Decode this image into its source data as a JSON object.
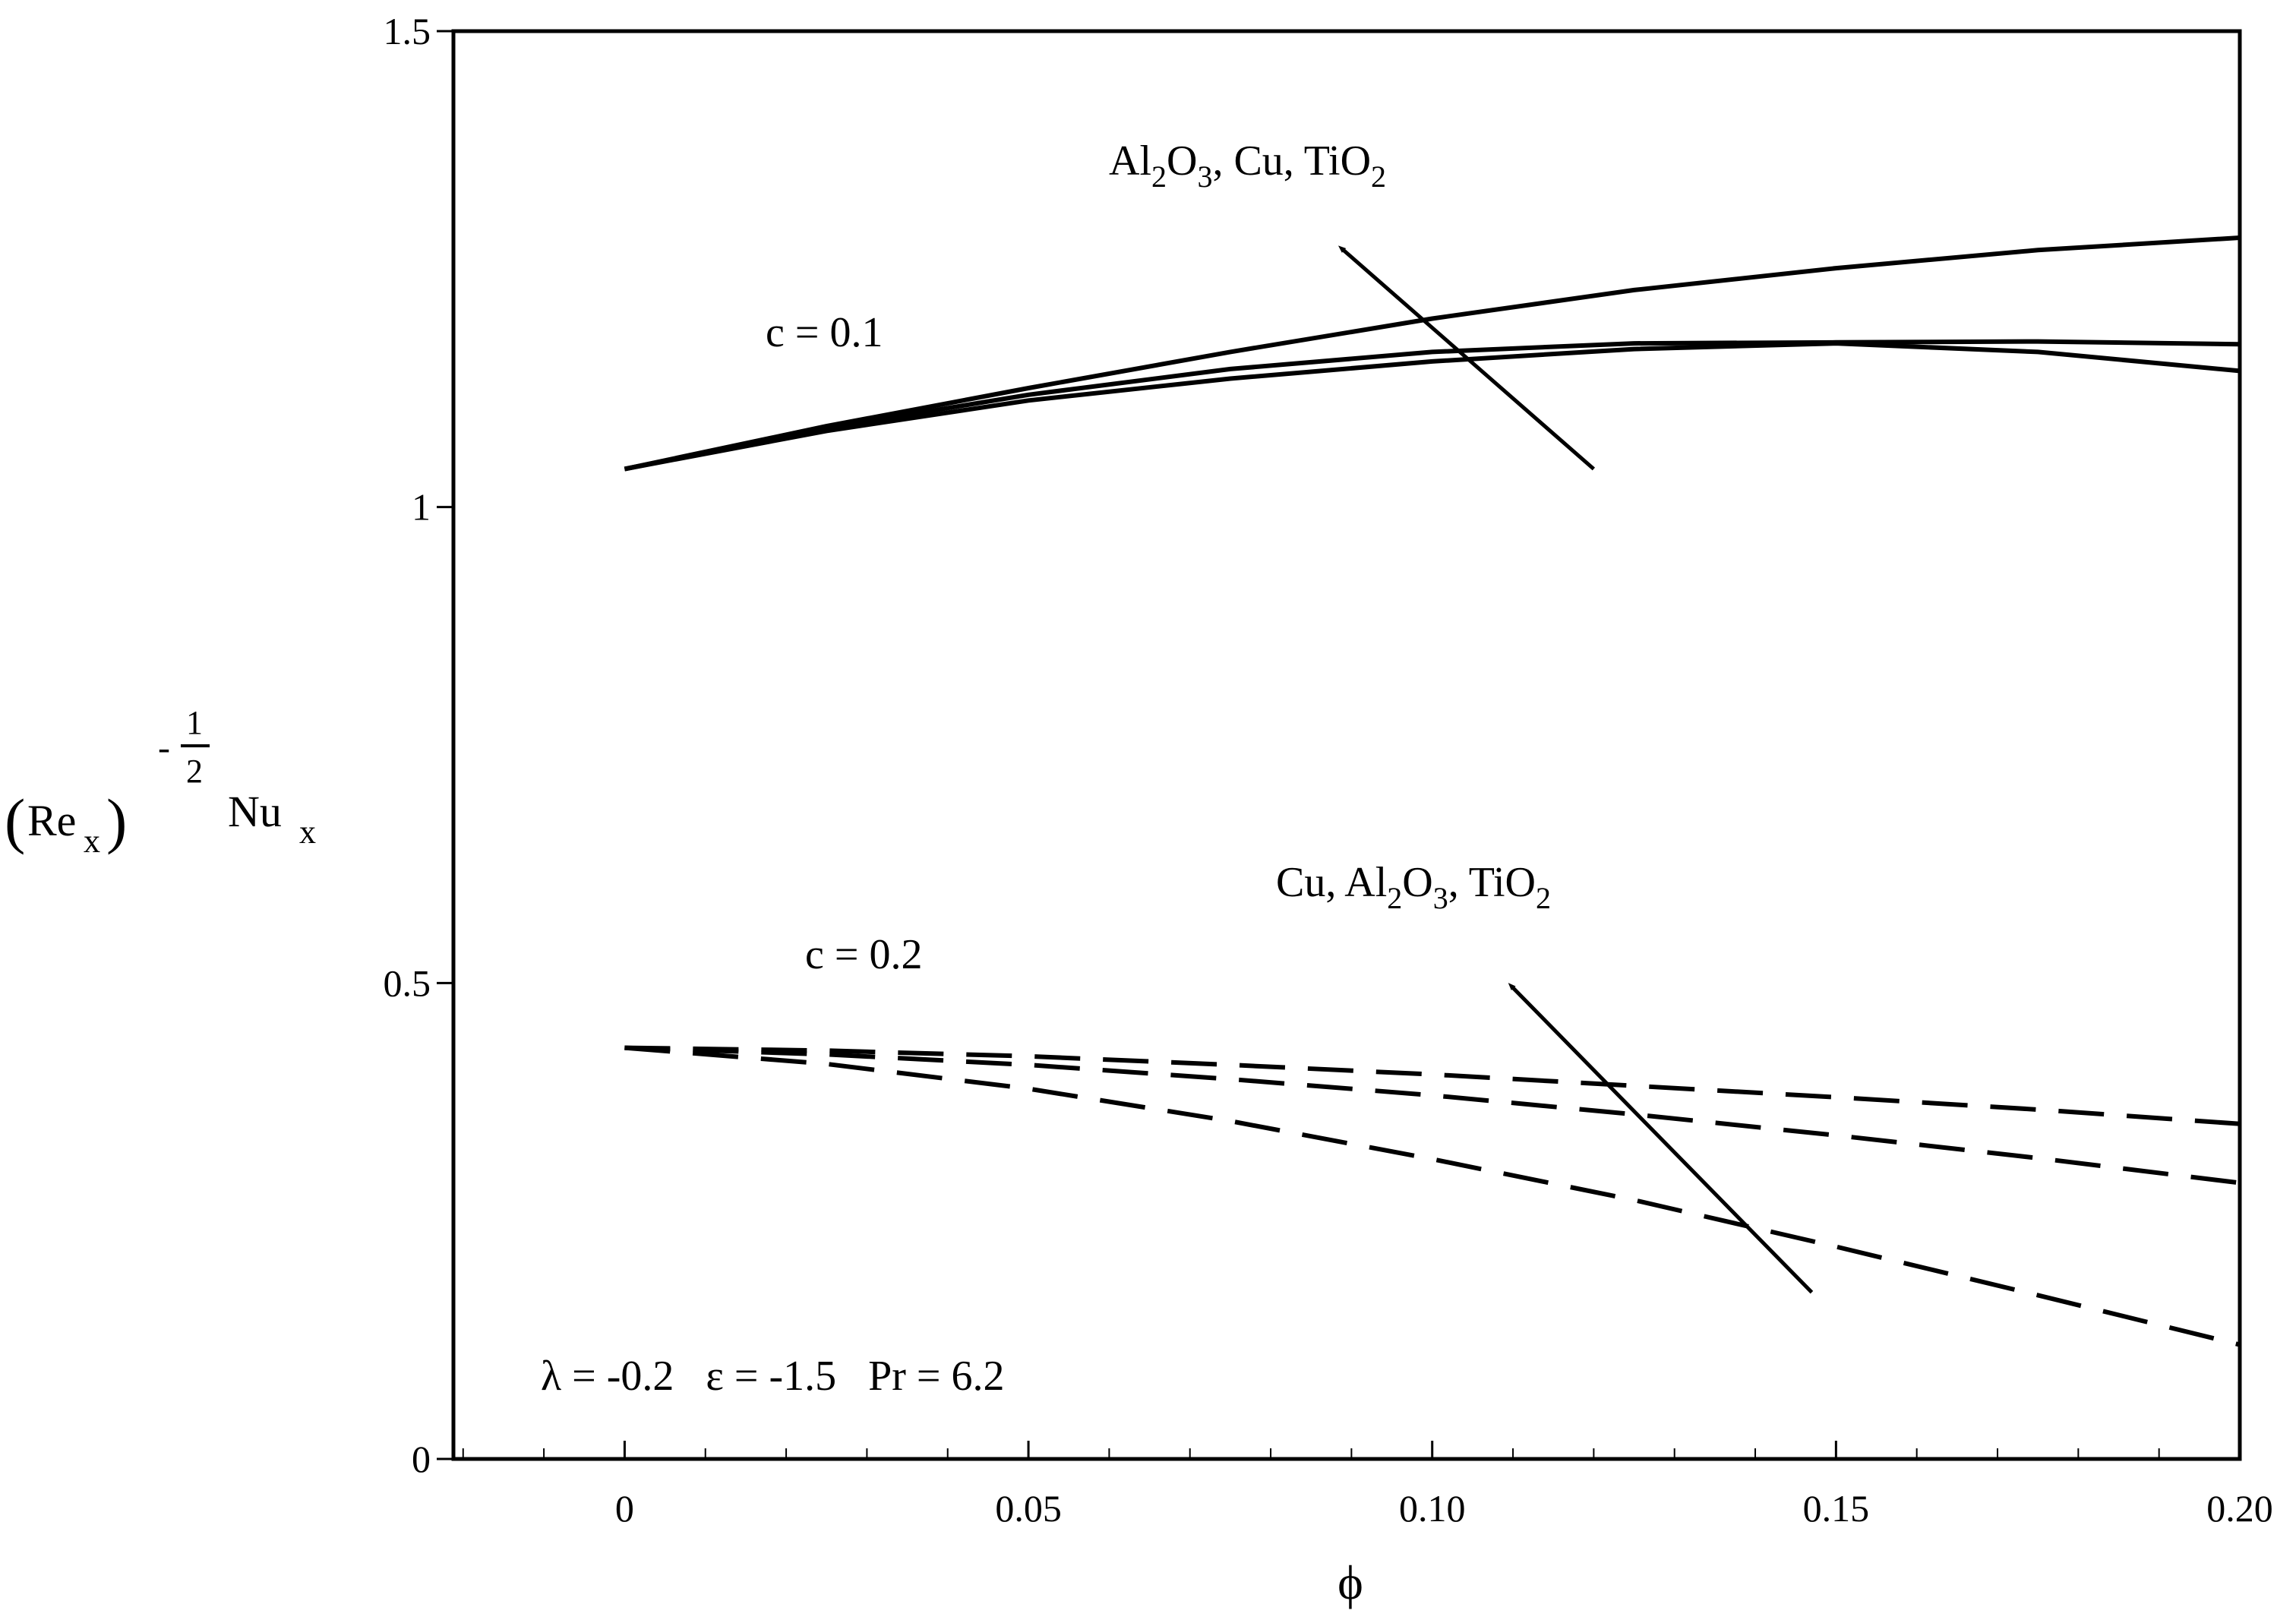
{
  "chart_data": {
    "type": "line",
    "xlabel": "ϕ",
    "ylabel": {
      "base": "Re",
      "base_sub": "x",
      "exp_num": "1",
      "exp_den": "2",
      "exp_sign": "-",
      "tail": "Nu",
      "tail_sub": "x"
    },
    "xlim": [
      -0.0212,
      0.2
    ],
    "ylim": [
      0,
      1.5
    ],
    "x_ticks": [
      0,
      0.05,
      0.1,
      0.15,
      0.2
    ],
    "x_tick_labels": [
      "0",
      "0.05",
      "0.10",
      "0.15",
      "0.20"
    ],
    "y_ticks": [
      0,
      0.5,
      1,
      1.5
    ],
    "y_tick_labels": [
      "0",
      "0.5",
      "1",
      "1.5"
    ],
    "groups": [
      {
        "label": "c = 0.1",
        "line_style": "solid",
        "arrow_label": {
          "parts": [
            "Al",
            "2",
            "O",
            "3",
            ", Cu, TiO",
            "2"
          ]
        },
        "arrow": {
          "from": [
            0.12,
            1.04
          ],
          "to": [
            0.089,
            1.27
          ]
        },
        "series": [
          {
            "x": [
              0,
              0.025,
              0.05,
              0.075,
              0.1,
              0.125,
              0.15,
              0.175,
              0.2
            ],
            "y": [
              1.04,
              1.085,
              1.125,
              1.163,
              1.198,
              1.228,
              1.251,
              1.27,
              1.283
            ]
          },
          {
            "x": [
              0,
              0.025,
              0.05,
              0.075,
              0.1,
              0.125,
              0.15,
              0.175,
              0.2
            ],
            "y": [
              1.04,
              1.083,
              1.118,
              1.145,
              1.163,
              1.172,
              1.173,
              1.174,
              1.171
            ]
          },
          {
            "x": [
              0,
              0.025,
              0.05,
              0.075,
              0.1,
              0.125,
              0.15,
              0.175,
              0.2
            ],
            "y": [
              1.04,
              1.08,
              1.112,
              1.135,
              1.153,
              1.166,
              1.172,
              1.163,
              1.143
            ]
          }
        ]
      },
      {
        "label": "c = 0.2",
        "line_style": "dashed",
        "arrow_label": {
          "parts": [
            "Cu, Al",
            "2",
            "O",
            "3",
            ", TiO",
            "2"
          ]
        },
        "arrow": {
          "from": [
            0.147,
            0.175
          ],
          "to": [
            0.11,
            0.495
          ]
        },
        "series": [
          {
            "x": [
              0,
              0.025,
              0.05,
              0.075,
              0.1,
              0.125,
              0.15,
              0.175,
              0.2
            ],
            "y": [
              0.432,
              0.429,
              0.423,
              0.414,
              0.404,
              0.392,
              0.38,
              0.367,
              0.352
            ]
          },
          {
            "x": [
              0,
              0.025,
              0.05,
              0.075,
              0.1,
              0.125,
              0.15,
              0.175,
              0.2
            ],
            "y": [
              0.432,
              0.425,
              0.414,
              0.399,
              0.382,
              0.362,
              0.34,
              0.316,
              0.29
            ]
          },
          {
            "x": [
              0,
              0.025,
              0.05,
              0.075,
              0.1,
              0.125,
              0.15,
              0.175,
              0.2
            ],
            "y": [
              0.432,
              0.415,
              0.389,
              0.355,
              0.315,
              0.272,
              0.223,
              0.172,
              0.12
            ]
          }
        ]
      }
    ],
    "parameters": "λ = -0.2   ε = -1.5   Pr = 6.2"
  }
}
